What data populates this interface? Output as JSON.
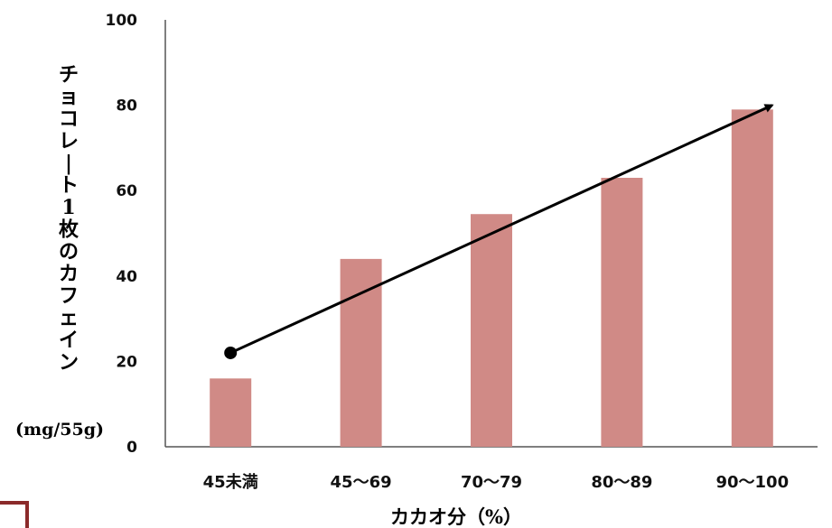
{
  "chart_data": {
    "type": "bar",
    "categories": [
      "45未満",
      "45〜69",
      "70〜79",
      "80〜89",
      "90〜100"
    ],
    "values": [
      16,
      44,
      54.5,
      63,
      79
    ],
    "xlabel": "カカオ分（%）",
    "ylabel": "チョコレート1枚のカフェイン",
    "yunit": "(mg/55g)",
    "ylim": [
      0,
      100
    ],
    "yticks": [
      0,
      20,
      40,
      60,
      80,
      100
    ],
    "bar_color": "#d08a86",
    "grid": false,
    "trend_arrow": {
      "from": [
        0,
        22
      ],
      "to": [
        4,
        80
      ]
    }
  },
  "decor": {
    "bracket_color": "#8b2a2a"
  }
}
